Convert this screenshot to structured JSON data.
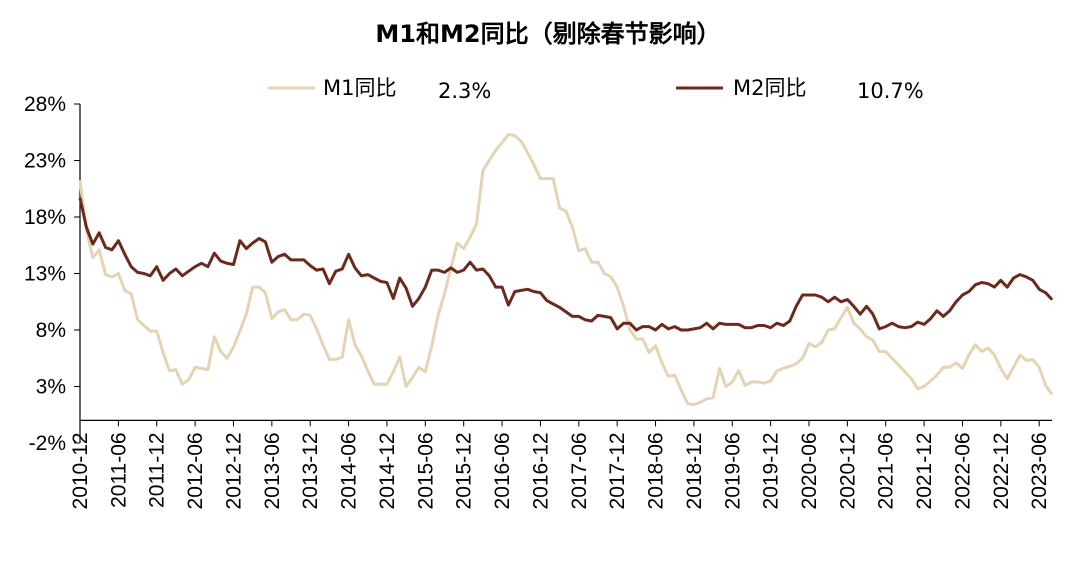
{
  "chart_data": {
    "type": "line",
    "title": "M1和M2同比（剔除春节影响）",
    "xlabel": "",
    "ylabel": "",
    "ylim": [
      -2,
      28
    ],
    "y_ticks": [
      "28%",
      "23%",
      "18%",
      "13%",
      "8%",
      "3%",
      "-2%"
    ],
    "y_tick_values": [
      28,
      23,
      18,
      13,
      8,
      3,
      -2
    ],
    "x_tick_labels": [
      "2010-12",
      "2011-06",
      "2011-12",
      "2012-06",
      "2012-12",
      "2013-06",
      "2013-12",
      "2014-06",
      "2014-12",
      "2015-06",
      "2015-12",
      "2016-06",
      "2016-12",
      "2017-06",
      "2017-12",
      "2018-06",
      "2018-12",
      "2019-06",
      "2019-12",
      "2020-06",
      "2020-12",
      "2021-06",
      "2021-12",
      "2022-06",
      "2022-12",
      "2023-06"
    ],
    "x_start": "2010-12",
    "x_end": "2023-07",
    "legend_placement": "top",
    "series": [
      {
        "name": "M1同比",
        "latest_label": "2.3%",
        "color": "#e6d3b3",
        "values": [
          21.2,
          16.8,
          14.4,
          15.1,
          12.9,
          12.7,
          13.0,
          11.5,
          11.2,
          8.9,
          8.4,
          7.9,
          7.9,
          6.0,
          4.4,
          4.5,
          3.2,
          3.6,
          4.7,
          4.6,
          4.5,
          7.4,
          6.1,
          5.5,
          6.5,
          7.9,
          9.4,
          11.8,
          11.8,
          11.3,
          9.0,
          9.6,
          9.8,
          8.9,
          8.9,
          9.4,
          9.3,
          8.1,
          6.7,
          5.4,
          5.4,
          5.6,
          8.9,
          6.7,
          5.7,
          4.4,
          3.2,
          3.2,
          3.2,
          4.3,
          5.6,
          3.0,
          3.8,
          4.7,
          4.3,
          6.6,
          9.3,
          11.2,
          13.5,
          15.7,
          15.2,
          16.2,
          17.4,
          22.1,
          23.0,
          23.9,
          24.6,
          25.3,
          25.2,
          24.7,
          23.7,
          22.6,
          21.4,
          21.4,
          21.4,
          18.8,
          18.5,
          17.1,
          15.0,
          15.2,
          14.0,
          14.0,
          13.0,
          12.7,
          11.8,
          10.1,
          8.0,
          7.2,
          7.2,
          6.0,
          6.6,
          5.1,
          3.9,
          4.0,
          2.7,
          1.5,
          1.4,
          1.6,
          1.9,
          2.0,
          4.6,
          3.0,
          3.4,
          4.4,
          3.1,
          3.4,
          3.4,
          3.3,
          3.5,
          4.4,
          4.6,
          4.8,
          5.0,
          5.5,
          6.8,
          6.5,
          6.9,
          8.0,
          8.1,
          9.1,
          10.0,
          8.6,
          8.1,
          7.4,
          7.1,
          6.1,
          6.1,
          5.5,
          4.9,
          4.3,
          3.7,
          2.8,
          3.0,
          3.5,
          4.0,
          4.7,
          4.7,
          5.1,
          4.6,
          5.8,
          6.7,
          6.1,
          6.4,
          5.8,
          4.6,
          3.7,
          4.7,
          5.8,
          5.3,
          5.4,
          4.7,
          3.1,
          2.3
        ]
      },
      {
        "name": "M2同比",
        "latest_label": "10.7%",
        "color": "#6b2a1c",
        "values": [
          19.7,
          17.1,
          15.6,
          16.6,
          15.3,
          15.1,
          15.9,
          14.7,
          13.6,
          13.1,
          13.0,
          12.8,
          13.6,
          12.4,
          13.0,
          13.4,
          12.8,
          13.2,
          13.6,
          13.9,
          13.6,
          14.8,
          14.1,
          13.9,
          13.8,
          15.9,
          15.2,
          15.7,
          16.1,
          15.8,
          14.0,
          14.5,
          14.7,
          14.2,
          14.2,
          14.2,
          13.7,
          13.3,
          13.4,
          12.1,
          13.2,
          13.4,
          14.7,
          13.5,
          12.8,
          12.9,
          12.6,
          12.3,
          12.2,
          10.8,
          12.6,
          11.7,
          10.1,
          10.8,
          11.8,
          13.3,
          13.3,
          13.1,
          13.5,
          13.1,
          13.3,
          14.0,
          13.3,
          13.4,
          12.8,
          11.8,
          11.8,
          10.2,
          11.4,
          11.5,
          11.6,
          11.4,
          11.3,
          10.6,
          10.3,
          10.0,
          9.6,
          9.2,
          9.2,
          8.9,
          8.8,
          9.3,
          9.2,
          9.1,
          8.1,
          8.6,
          8.6,
          8.0,
          8.3,
          8.3,
          8.0,
          8.5,
          8.1,
          8.3,
          8.0,
          8.0,
          8.1,
          8.2,
          8.6,
          8.1,
          8.6,
          8.5,
          8.5,
          8.5,
          8.2,
          8.2,
          8.4,
          8.4,
          8.2,
          8.6,
          8.4,
          8.8,
          10.1,
          11.1,
          11.1,
          11.1,
          10.9,
          10.5,
          10.9,
          10.5,
          10.7,
          10.1,
          9.4,
          10.1,
          9.4,
          8.1,
          8.3,
          8.6,
          8.3,
          8.2,
          8.3,
          8.7,
          8.5,
          9.0,
          9.7,
          9.2,
          9.7,
          10.5,
          11.1,
          11.4,
          12.0,
          12.2,
          12.1,
          11.8,
          12.4,
          11.8,
          12.6,
          12.9,
          12.7,
          12.4,
          11.6,
          11.3,
          10.7
        ]
      }
    ]
  }
}
